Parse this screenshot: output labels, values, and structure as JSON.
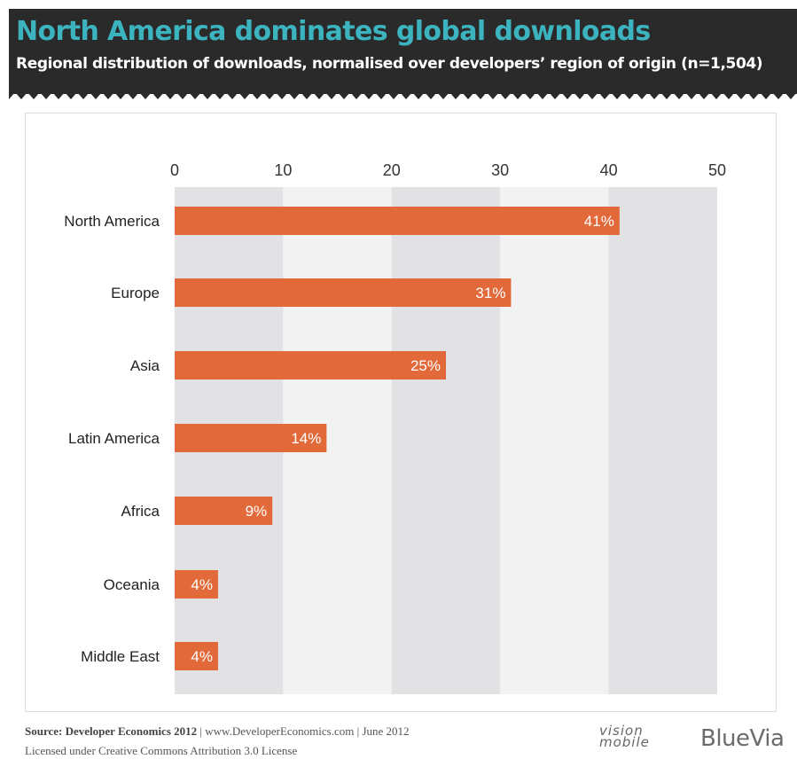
{
  "header": {
    "title": "North America dominates global downloads",
    "subtitle": "Regional distribution of downloads, normalised over developers’ region of origin (n=1,504)"
  },
  "chart_data": {
    "type": "bar",
    "orientation": "horizontal",
    "title": "North America dominates global downloads",
    "subtitle": "Regional distribution of downloads, normalised over developers’ region of origin (n=1,504)",
    "categories": [
      "North America",
      "Europe",
      "Asia",
      "Latin America",
      "Africa",
      "Oceania",
      "Middle East"
    ],
    "values": [
      41,
      31,
      25,
      14,
      9,
      4,
      4
    ],
    "data_labels": [
      "41%",
      "31%",
      "25%",
      "14%",
      "9%",
      "4%",
      "4%"
    ],
    "xlim": [
      0,
      50
    ],
    "x_ticks": [
      "0",
      "10",
      "20",
      "30",
      "40",
      "50"
    ],
    "x_axis_position": "top",
    "grid": "alternating bands",
    "bar_color": "#e2693a",
    "band_colors": [
      "#e2e2e5",
      "#f2f2f3"
    ]
  },
  "footer": {
    "source_label": "Source: Developer Economics 2012",
    "source_rest": " | www.DeveloperEconomics.com | June 2012",
    "license": "Licensed under Creative Commons Attribution 3.0 License"
  },
  "logos": {
    "vision_line1": "vision",
    "vision_line2": "mobile",
    "bluevia": "BlueVia"
  }
}
